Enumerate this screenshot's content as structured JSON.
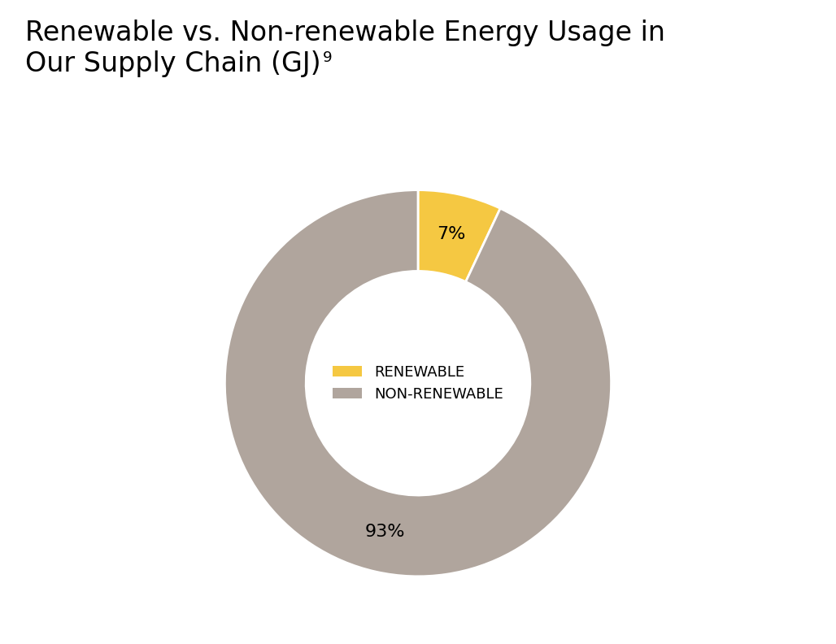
{
  "chart_data": {
    "type": "donut",
    "title": "Renewable vs. Non-renewable Energy Usage in\nOur Supply Chain (GJ)",
    "annotations": [
      "9"
    ],
    "categories": [
      "RENEWABLE",
      "NON-RENEWABLE"
    ],
    "values": [
      7,
      93
    ],
    "value_labels": [
      "7%",
      "93%"
    ],
    "colors": [
      "#F5C842",
      "#B0A59D"
    ],
    "data_labels": true,
    "legend": "center"
  }
}
